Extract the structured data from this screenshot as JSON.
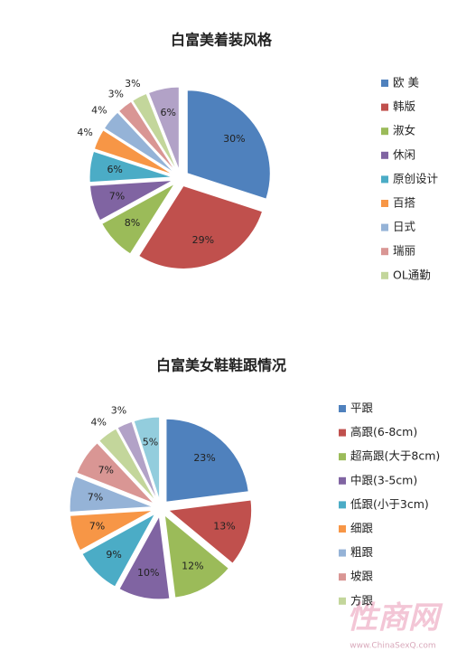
{
  "chart_data": [
    {
      "type": "pie",
      "title": "白富美着装风格",
      "categories": [
        "欧 美",
        "韩版",
        "淑女",
        "休闲",
        "原创设计",
        "百搭",
        "日式",
        "瑞丽",
        "OL通勤",
        null
      ],
      "values": [
        30,
        29,
        8,
        7,
        6,
        4,
        4,
        3,
        3,
        6
      ],
      "value_labels": [
        "30%",
        "29%",
        "8%",
        "7%",
        "6%",
        "4%",
        "4%",
        "3%",
        "3%",
        "6%"
      ],
      "colors": [
        "#4f81bd",
        "#c0504d",
        "#9bbb59",
        "#8064a2",
        "#4bacc6",
        "#f79646",
        "#95b3d7",
        "#d99694",
        "#c3d69b",
        "#b2a2c7"
      ],
      "legend": "right"
    },
    {
      "type": "pie",
      "title": "白富美女鞋鞋跟情况",
      "categories": [
        "平跟",
        "高跟(6-8cm)",
        "超高跟(大于8cm)",
        "中跟(3-5cm)",
        "低跟(小于3cm)",
        "细跟",
        "粗跟",
        "坡跟",
        "方跟",
        null,
        null
      ],
      "values": [
        23,
        13,
        12,
        10,
        9,
        7,
        7,
        7,
        4,
        3,
        5
      ],
      "value_labels": [
        "23%",
        "13%",
        "12%",
        "10%",
        "9%",
        "7%",
        "7%",
        "7%",
        "4%",
        "3%",
        "5%"
      ],
      "colors": [
        "#4f81bd",
        "#c0504d",
        "#9bbb59",
        "#8064a2",
        "#4bacc6",
        "#f79646",
        "#95b3d7",
        "#d99694",
        "#c3d69b",
        "#b2a2c7",
        "#93cddd"
      ],
      "legend": "right"
    }
  ],
  "watermark": {
    "logo": "性商网",
    "url": "www.ChinaSexQ.com"
  }
}
